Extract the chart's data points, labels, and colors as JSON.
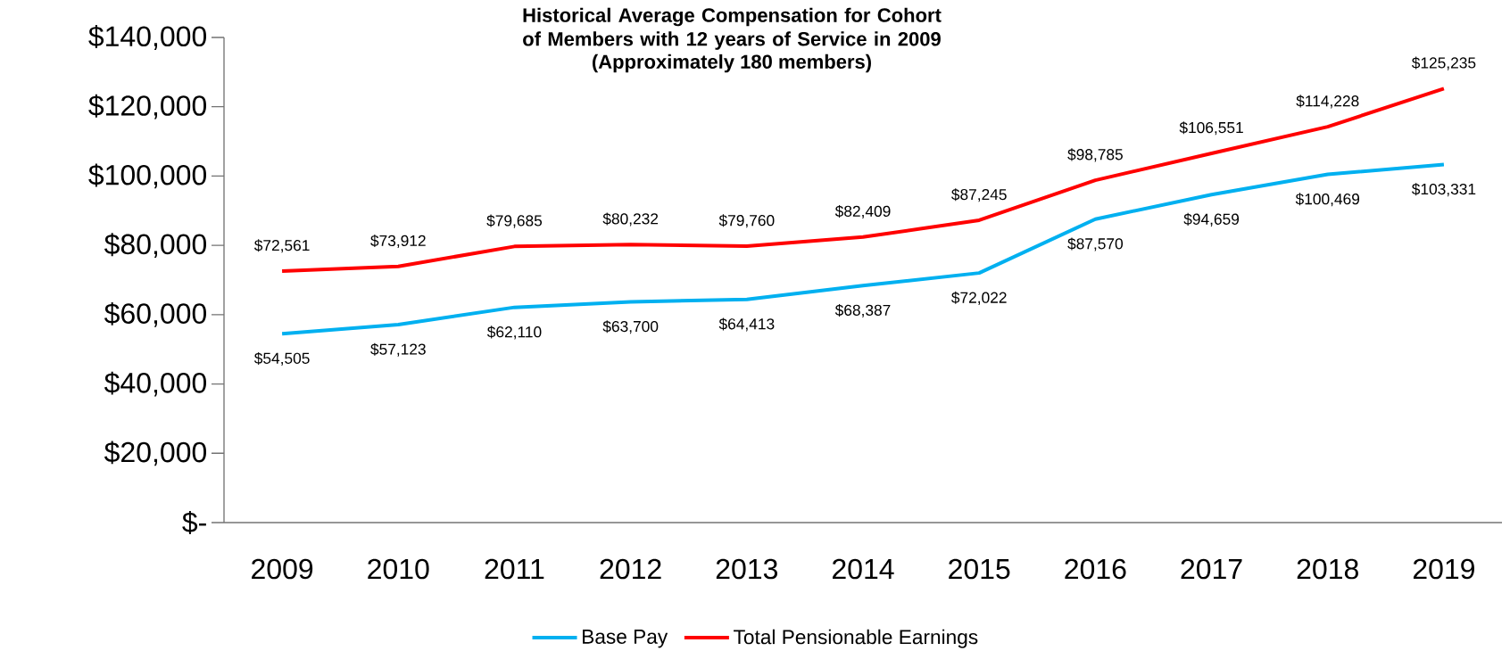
{
  "chart_data": {
    "type": "line",
    "title": "Historical Average Compensation for Cohort of Members with 12 years of Service in 2009",
    "subtitle": "(Approximately 180 members)",
    "categories": [
      "2009",
      "2010",
      "2011",
      "2012",
      "2013",
      "2014",
      "2015",
      "2016",
      "2017",
      "2018",
      "2019"
    ],
    "series": [
      {
        "name": "Base Pay",
        "color": "#00b0f0",
        "values": [
          54505,
          57123,
          62110,
          63700,
          64413,
          68387,
          72022,
          87570,
          94659,
          100469,
          103331
        ],
        "value_labels": [
          "$54,505",
          "$57,123",
          "$62,110",
          "$63,700",
          "$64,413",
          "$68,387",
          "$72,022",
          "$87,570",
          "$94,659",
          "$100,469",
          "$103,331"
        ]
      },
      {
        "name": "Total Pensionable Earnings",
        "color": "#ff0000",
        "values": [
          72561,
          73912,
          79685,
          80232,
          79760,
          82409,
          87245,
          98785,
          106551,
          114228,
          125235
        ],
        "value_labels": [
          "$72,561",
          "$73,912",
          "$79,685",
          "$80,232",
          "$79,760",
          "$82,409",
          "$87,245",
          "$98,785",
          "$106,551",
          "$114,228",
          "$125,235"
        ]
      }
    ],
    "ylim": [
      0,
      140000
    ],
    "yticks": [
      {
        "value": 0,
        "label": "$-"
      },
      {
        "value": 20000,
        "label": "$20,000"
      },
      {
        "value": 40000,
        "label": "$40,000"
      },
      {
        "value": 60000,
        "label": "$60,000"
      },
      {
        "value": 80000,
        "label": "$80,000"
      },
      {
        "value": 100000,
        "label": "$100,000"
      },
      {
        "value": 120000,
        "label": "$120,000"
      },
      {
        "value": 140000,
        "label": "$140,000"
      }
    ],
    "legend": "bottom",
    "line_style": "solid",
    "marker": "none"
  }
}
